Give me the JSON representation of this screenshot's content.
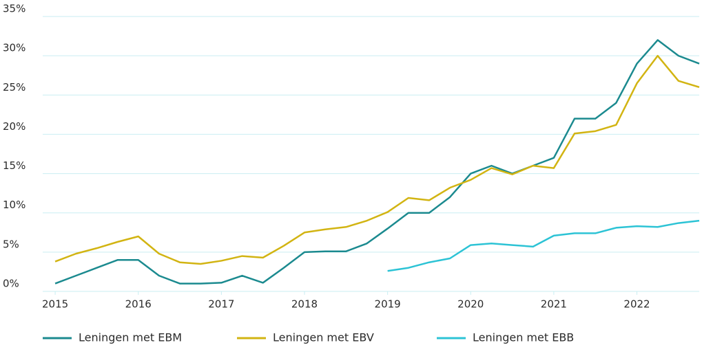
{
  "chart_data": {
    "type": "line",
    "x": [
      2015,
      2015.25,
      2015.5,
      2015.75,
      2016,
      2016.25,
      2016.5,
      2016.75,
      2017,
      2017.25,
      2017.5,
      2017.75,
      2018,
      2018.25,
      2018.5,
      2018.75,
      2019,
      2019.25,
      2019.5,
      2019.75,
      2020,
      2020.25,
      2020.5,
      2020.75,
      2021,
      2021.25,
      2021.5,
      2021.75,
      2022,
      2022.25,
      2022.5,
      2022.75
    ],
    "series": [
      {
        "name": "Leningen met EBM",
        "color": "#1b8a8f",
        "values": [
          1,
          2,
          3,
          4,
          4,
          2,
          1,
          1,
          1.1,
          2,
          1.1,
          3,
          5,
          5.1,
          5.1,
          6.1,
          8,
          10,
          10,
          12,
          15,
          16,
          15,
          16,
          17,
          22,
          22,
          24,
          29,
          32,
          30,
          29
        ]
      },
      {
        "name": "Leningen met EBV",
        "color": "#d2b412",
        "values": [
          3.8,
          4.8,
          5.5,
          6.3,
          7,
          4.8,
          3.7,
          3.5,
          3.9,
          4.5,
          4.3,
          5.8,
          7.5,
          7.9,
          8.2,
          9,
          10.1,
          11.9,
          11.6,
          13.2,
          14.2,
          15.7,
          14.9,
          16,
          15.7,
          20.1,
          20.4,
          21.2,
          26.5,
          30,
          26.8,
          26
        ]
      },
      {
        "name": "Leningen met EBB",
        "color": "#2cc3d5",
        "values": [
          null,
          null,
          null,
          null,
          null,
          null,
          null,
          null,
          null,
          null,
          null,
          null,
          null,
          null,
          null,
          null,
          2.6,
          3,
          3.7,
          4.2,
          5.9,
          6.1,
          5.9,
          5.7,
          7.1,
          7.4,
          7.4,
          8.1,
          8.3,
          8.2,
          8.7,
          9
        ]
      }
    ],
    "xlim": [
      2014.85,
      2022.75
    ],
    "xticks": [
      2015,
      2016,
      2017,
      2018,
      2019,
      2020,
      2021,
      2022
    ],
    "ylim": [
      0,
      35
    ],
    "yticks": [
      {
        "value": 0,
        "label": "0%"
      },
      {
        "value": 5,
        "label": "5%"
      },
      {
        "value": 10,
        "label": "10%"
      },
      {
        "value": 15,
        "label": "15%"
      },
      {
        "value": 20,
        "label": "20%"
      },
      {
        "value": 25,
        "label": "25%"
      },
      {
        "value": 30,
        "label": "30%"
      },
      {
        "value": 35,
        "label": "35%"
      }
    ],
    "grid": true,
    "grid_color": "#c9eef2",
    "legend": "bottom"
  }
}
